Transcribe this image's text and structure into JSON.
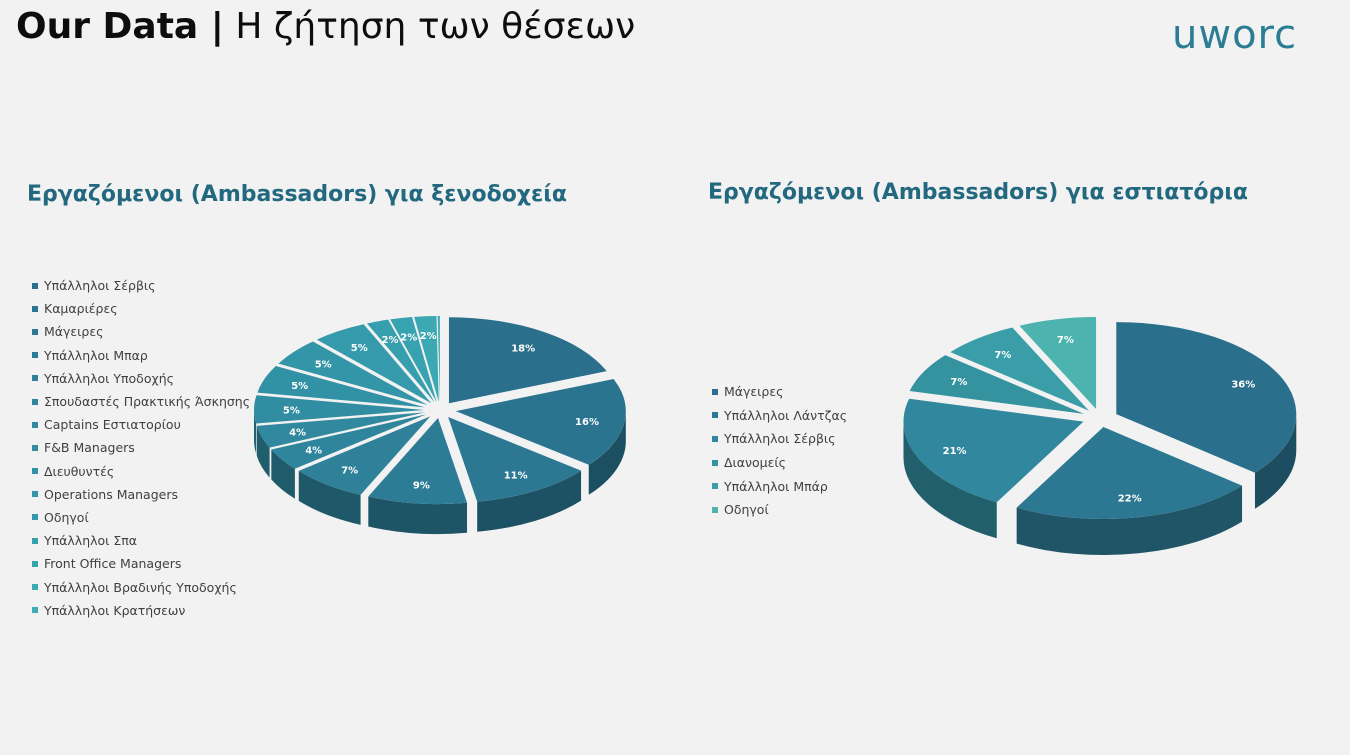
{
  "header": {
    "title_bold": "Our Data |",
    "title_rest": " Η ζήτηση των θέσεων",
    "logo_text": "uworc",
    "logo_color": "#2a7d93"
  },
  "chart_data": [
    {
      "type": "pie",
      "title": "Εργαζόμενοι (Ambassadors) για ξενοδοχεία",
      "legend_position": "left",
      "categories": [
        "Υπάλληλοι Σέρβις",
        "Καμαριέρες",
        "Μάγειρες",
        "Υπάλληλοι Μπαρ",
        "Υπάλληλοι Υποδοχής",
        "Σπουδαστές Πρακτικής Άσκησης",
        "Captains Εστιατορίου",
        "F&B Managers",
        "Διευθυντές",
        "Operations Managers",
        "Οδηγοί",
        "Υπάλληλοι Σπα",
        "Front Office Managers",
        "Υπάλληλοι Βραδινής Υποδοχής",
        "Υπάλληλοι Κρατήσεων"
      ],
      "values": [
        18,
        16,
        11,
        9,
        7,
        4,
        4,
        5,
        5,
        5,
        5,
        2,
        2,
        2,
        0.2
      ],
      "labels": [
        "18%",
        "16%",
        "11%",
        "9%",
        "7%",
        "4%",
        "4%",
        "5%",
        "5%",
        "5%",
        "5%",
        "2%",
        "2%",
        "2%",
        ""
      ],
      "colors": [
        "#2a6f8b",
        "#2b7490",
        "#2c7893",
        "#2d7c96",
        "#2e8199",
        "#2f859c",
        "#30899f",
        "#318da2",
        "#3292a5",
        "#3396a8",
        "#359aab",
        "#369fad",
        "#38a3b0",
        "#3ba8b2",
        "#3facb4"
      ],
      "side_colors": [
        "#1c4d60",
        "#1c4f62",
        "#1d5264",
        "#1e5566",
        "#1e5869",
        "#1f5b6b",
        "#205e6d",
        "#21616f",
        "#226471",
        "#236773",
        "#246a75",
        "#256d77",
        "#266f78",
        "#27727a",
        "#29757b"
      ]
    },
    {
      "type": "pie",
      "title": "Εργαζόμενοι (Ambassadors) για εστιατόρια",
      "legend_position": "left",
      "categories": [
        "Μάγειρες",
        "Υπάλληλοι Λάντζας",
        "Υπάλληλοι Σέρβις",
        "Διανομείς",
        "Υπάλληλοι Μπάρ",
        "Οδηγοί"
      ],
      "values": [
        36,
        22,
        21,
        7,
        7,
        7
      ],
      "labels": [
        "36%",
        "22%",
        "21%",
        "7%",
        "7%",
        "7%"
      ],
      "colors": [
        "#2a6f8b",
        "#2c7892",
        "#31879d",
        "#35939f",
        "#3a9ea8",
        "#4cb3ae"
      ],
      "side_colors": [
        "#1c4d60",
        "#1f5567",
        "#225f6d",
        "#256770",
        "#286f75",
        "#327a78"
      ]
    }
  ]
}
